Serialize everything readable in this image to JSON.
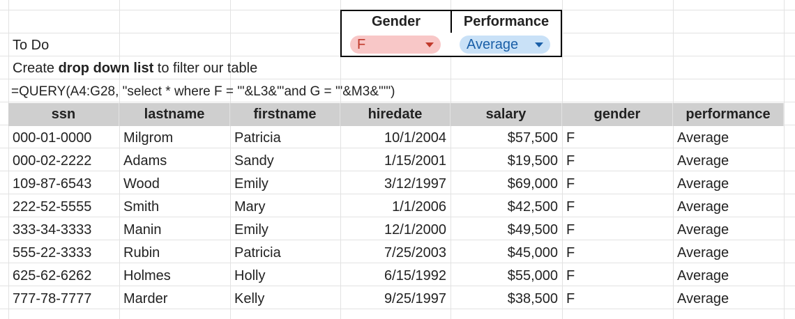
{
  "filters": {
    "gender_header": "Gender",
    "performance_header": "Performance",
    "gender_value": "F",
    "performance_value": "Average",
    "gender_color": "#f8c7c7",
    "gender_text_color": "#c0392b",
    "performance_color": "#c9e1f7",
    "performance_text_color": "#1a5fa8"
  },
  "notes": {
    "todo": "To Do",
    "instruction_prefix": "Create ",
    "instruction_bold": "drop down list",
    "instruction_suffix": " to filter our table",
    "formula": "=QUERY(A4:G28, \"select * where F = '\"&L3&\"'and G = '\"&M3&\"'\")"
  },
  "table": {
    "header_color": "#cfcfcf",
    "columns": [
      "ssn",
      "lastname",
      "firstname",
      "hiredate",
      "salary",
      "gender",
      "performance"
    ],
    "rows": [
      [
        "000-01-0000",
        "Milgrom",
        "Patricia",
        "10/1/2004",
        "$57,500",
        "F",
        "Average"
      ],
      [
        "000-02-2222",
        "Adams",
        "Sandy",
        "1/15/2001",
        "$19,500",
        "F",
        "Average"
      ],
      [
        "109-87-6543",
        "Wood",
        "Emily",
        "3/12/1997",
        "$69,000",
        "F",
        "Average"
      ],
      [
        "222-52-5555",
        "Smith",
        "Mary",
        "1/1/2006",
        "$42,500",
        "F",
        "Average"
      ],
      [
        "333-34-3333",
        "Manin",
        "Emily",
        "12/1/2000",
        "$49,500",
        "F",
        "Average"
      ],
      [
        "555-22-3333",
        "Rubin",
        "Patricia",
        "7/25/2003",
        "$45,000",
        "F",
        "Average"
      ],
      [
        "625-62-6262",
        "Holmes",
        "Holly",
        "6/15/1992",
        "$55,000",
        "F",
        "Average"
      ],
      [
        "777-78-7777",
        "Marder",
        "Kelly",
        "9/25/1997",
        "$38,500",
        "F",
        "Average"
      ]
    ]
  }
}
